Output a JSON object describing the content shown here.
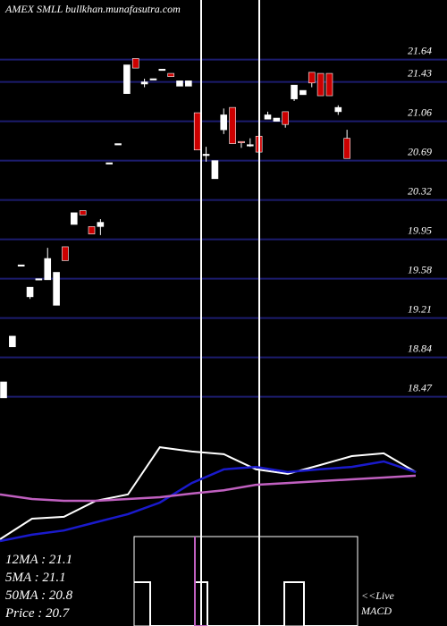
{
  "chart_data": {
    "type": "candlestick",
    "title": "AMEX  SMLL  bullkhan.munafasutra.com",
    "categories": [
      null,
      null,
      null,
      null,
      null,
      null,
      null,
      null,
      null,
      null,
      null,
      null,
      null,
      null,
      null,
      null,
      null,
      null,
      null,
      null,
      null,
      null,
      null,
      null,
      null,
      null,
      null,
      null,
      null,
      null,
      null,
      null,
      null,
      null,
      null,
      null,
      null,
      null,
      null,
      null
    ],
    "open": [
      18.46,
      18.94,
      19.7,
      19.41,
      19.58,
      19.57,
      19.33,
      19.88,
      20.09,
      20.22,
      20.07,
      20.07,
      20.67,
      20.85,
      21.32,
      21.65,
      21.41,
      21.46,
      21.55,
      21.51,
      21.39,
      21.39,
      21.14,
      20.75,
      20.52,
      20.98,
      21.19,
      20.87,
      20.84,
      20.92,
      21.08,
      21.06,
      21.15,
      21.27,
      21.31,
      21.52,
      21.51,
      21.51,
      21.15,
      20.9
    ],
    "high": [
      18.61,
      19.04,
      19.71,
      19.5,
      19.58,
      19.87,
      19.64,
      19.88,
      20.2,
      20.22,
      20.07,
      20.14,
      20.67,
      20.85,
      21.59,
      21.65,
      21.46,
      21.46,
      21.55,
      21.51,
      21.44,
      21.44,
      21.14,
      20.82,
      20.69,
      21.18,
      21.19,
      20.87,
      20.9,
      20.92,
      21.15,
      21.09,
      21.15,
      21.4,
      21.35,
      21.52,
      21.51,
      21.51,
      21.21,
      20.98
    ],
    "low": [
      18.46,
      18.94,
      19.7,
      19.39,
      19.58,
      19.57,
      19.33,
      19.75,
      20.09,
      20.18,
      20.0,
      19.99,
      20.67,
      20.85,
      21.32,
      21.56,
      21.38,
      21.46,
      21.55,
      21.48,
      21.39,
      21.39,
      20.79,
      20.68,
      20.52,
      20.94,
      20.85,
      20.81,
      20.82,
      20.66,
      21.08,
      21.06,
      21.0,
      21.25,
      21.31,
      21.38,
      21.3,
      21.3,
      21.12,
      20.71
    ],
    "close": [
      18.61,
      19.04,
      19.71,
      19.5,
      19.58,
      19.77,
      19.64,
      19.75,
      20.2,
      20.18,
      20.0,
      20.11,
      20.67,
      20.85,
      21.59,
      21.56,
      21.43,
      21.46,
      21.55,
      21.48,
      21.44,
      21.44,
      20.79,
      20.75,
      20.69,
      21.12,
      20.85,
      20.86,
      20.84,
      20.77,
      21.12,
      21.09,
      21.03,
      21.4,
      21.35,
      21.42,
      21.3,
      21.3,
      21.19,
      20.71
    ],
    "up_color": "#ffffff",
    "down_color": "#cc0000",
    "grid_color": "#1c1c6e",
    "ylim": [
      18.4,
      22.2
    ],
    "yticks": [
      21.64,
      21.43,
      21.06,
      20.69,
      20.32,
      19.95,
      19.58,
      19.21,
      18.84,
      18.47
    ],
    "grid": true,
    "overlay_ylim": [
      18.3,
      21.7
    ],
    "overlays": [
      {
        "color": "#ffffff",
        "values": [
          18.36,
          19.04,
          19.1,
          19.63,
          19.84,
          21.4,
          21.26,
          21.17,
          20.67,
          20.52,
          20.81,
          21.11,
          21.2,
          20.58
        ]
      },
      {
        "color": "#1a1acc",
        "values": [
          18.3,
          18.51,
          18.65,
          18.92,
          19.19,
          19.57,
          20.22,
          20.67,
          20.75,
          20.58,
          20.67,
          20.75,
          20.93,
          20.58
        ]
      },
      {
        "color": "#c060c0",
        "values": [
          19.84,
          19.69,
          19.63,
          19.63,
          19.69,
          19.75,
          19.87,
          19.98,
          20.16,
          20.22,
          20.28,
          20.34,
          20.4,
          20.46
        ]
      }
    ],
    "ma_labels": [
      "12MA : 21.1",
      "5MA : 21.1",
      "50MA : 20.8",
      "Price   : 20.7"
    ],
    "live_label": "<<Live",
    "macd_label": "MACD"
  }
}
